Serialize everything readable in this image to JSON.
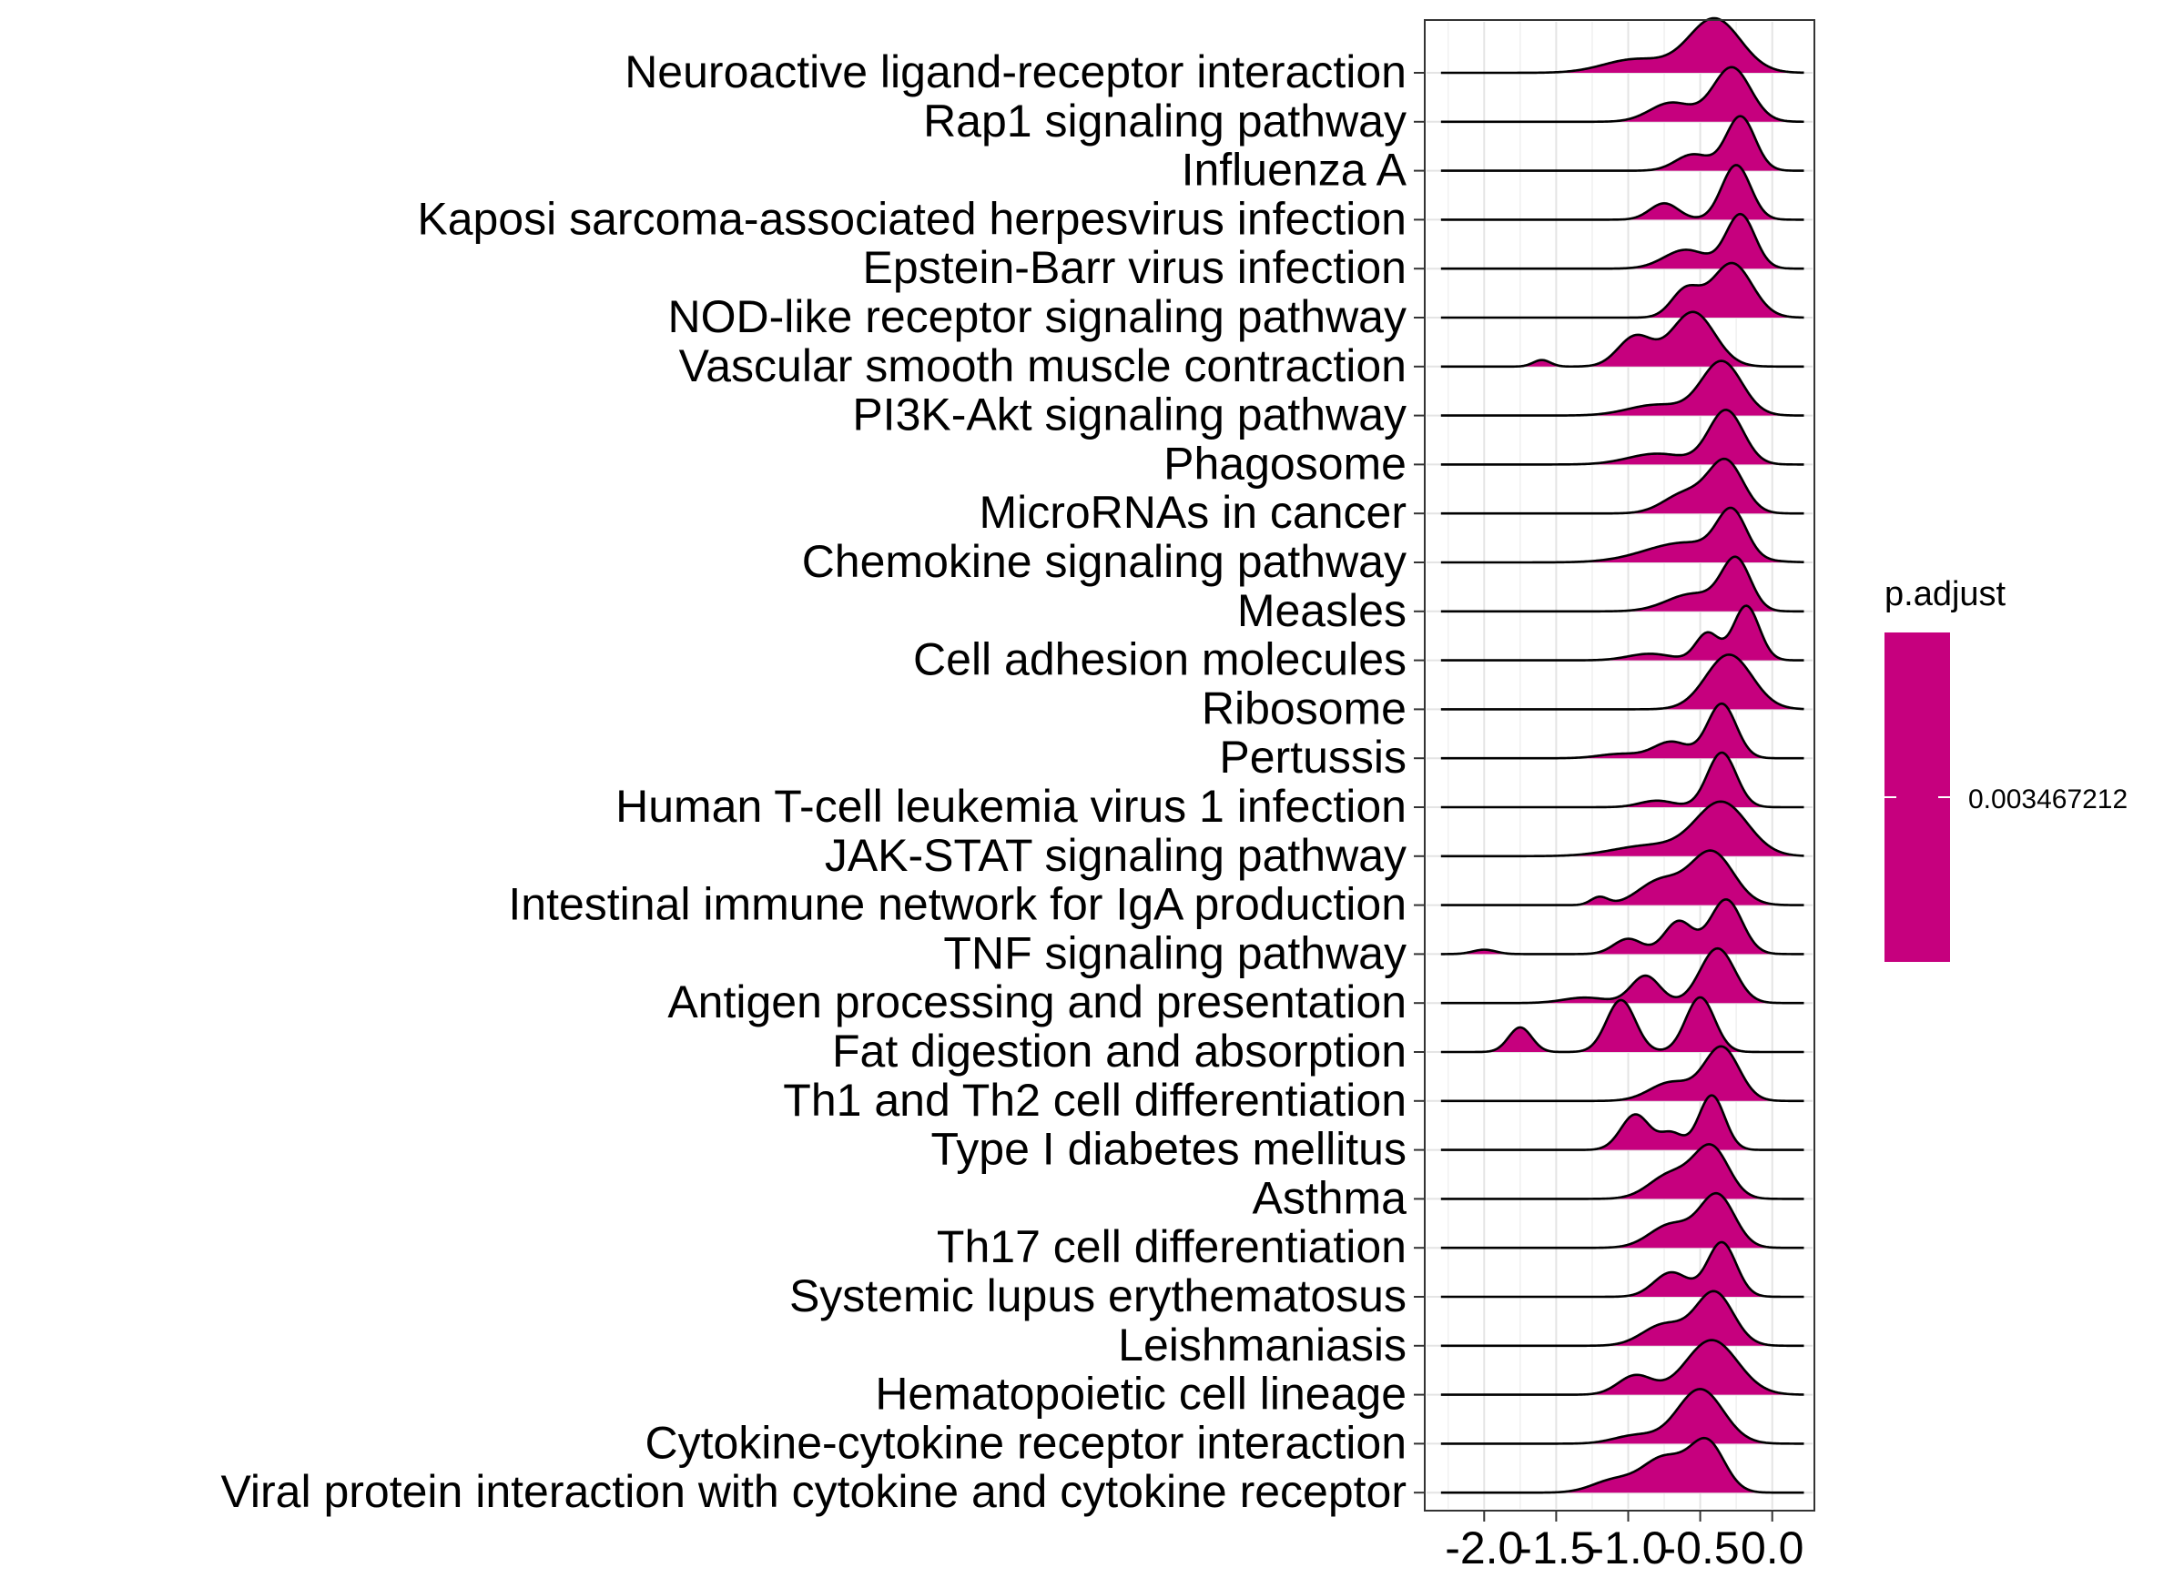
{
  "chart_data": {
    "type": "ridgeline",
    "xlim": [
      -2.4,
      0.28
    ],
    "x_ticks": [
      -2.0,
      -1.5,
      -1.0,
      -0.5,
      0.0
    ],
    "x_tick_labels": [
      "-2.0",
      "-1.5",
      "-1.0",
      "-0.5",
      "0.0"
    ],
    "xlabel": "",
    "ylabel": "",
    "grid": true,
    "legend": {
      "title": "p.adjust",
      "position": "right",
      "value_label": "0.003467212",
      "color": "#C6007E"
    },
    "fill_color": "#C6007E",
    "line_color": "#000000",
    "series": [
      {
        "name": "Neuroactive ligand-receptor interaction",
        "peaks": [
          [
            -0.4,
            0.18,
            1.0
          ],
          [
            -0.95,
            0.22,
            0.25
          ]
        ]
      },
      {
        "name": "Rap1 signaling pathway",
        "peaks": [
          [
            -0.28,
            0.13,
            1.0
          ],
          [
            -0.7,
            0.15,
            0.35
          ]
        ]
      },
      {
        "name": "Influenza A",
        "peaks": [
          [
            -0.22,
            0.1,
            1.0
          ],
          [
            -0.55,
            0.12,
            0.3
          ]
        ]
      },
      {
        "name": "Kaposi sarcoma-associated herpesvirus infection",
        "peaks": [
          [
            -0.25,
            0.1,
            1.0
          ],
          [
            -0.75,
            0.1,
            0.3
          ]
        ]
      },
      {
        "name": "Epstein-Barr virus infection",
        "peaks": [
          [
            -0.22,
            0.1,
            1.0
          ],
          [
            -0.6,
            0.15,
            0.35
          ]
        ]
      },
      {
        "name": "NOD-like receptor signaling pathway",
        "peaks": [
          [
            -0.28,
            0.14,
            1.0
          ],
          [
            -0.6,
            0.1,
            0.5
          ]
        ]
      },
      {
        "name": "Vascular smooth muscle contraction",
        "peaks": [
          [
            -0.55,
            0.15,
            1.0
          ],
          [
            -0.95,
            0.12,
            0.55
          ],
          [
            -1.6,
            0.06,
            0.12
          ]
        ]
      },
      {
        "name": "PI3K-Akt signaling pathway",
        "peaks": [
          [
            -0.35,
            0.14,
            1.0
          ],
          [
            -0.8,
            0.2,
            0.2
          ]
        ]
      },
      {
        "name": "Phagosome",
        "peaks": [
          [
            -0.32,
            0.12,
            1.0
          ],
          [
            -0.8,
            0.2,
            0.2
          ]
        ]
      },
      {
        "name": "MicroRNAs in cancer",
        "peaks": [
          [
            -0.32,
            0.12,
            1.0
          ],
          [
            -0.6,
            0.15,
            0.4
          ]
        ]
      },
      {
        "name": "Chemokine signaling pathway",
        "peaks": [
          [
            -0.28,
            0.1,
            1.0
          ],
          [
            -0.6,
            0.28,
            0.45
          ]
        ]
      },
      {
        "name": "Measles",
        "peaks": [
          [
            -0.25,
            0.1,
            1.0
          ],
          [
            -0.55,
            0.18,
            0.35
          ]
        ]
      },
      {
        "name": "Cell adhesion molecules",
        "peaks": [
          [
            -0.18,
            0.09,
            1.0
          ],
          [
            -0.45,
            0.08,
            0.5
          ],
          [
            -0.85,
            0.15,
            0.12
          ]
        ]
      },
      {
        "name": "Ribosome",
        "peaks": [
          [
            -0.3,
            0.16,
            1.0
          ]
        ]
      },
      {
        "name": "Pertussis",
        "peaks": [
          [
            -0.35,
            0.1,
            1.0
          ],
          [
            -0.7,
            0.12,
            0.3
          ],
          [
            -1.05,
            0.15,
            0.08
          ]
        ]
      },
      {
        "name": "Human T-cell leukemia virus 1 infection",
        "peaks": [
          [
            -0.35,
            0.1,
            1.0
          ],
          [
            -0.8,
            0.12,
            0.12
          ]
        ]
      },
      {
        "name": "JAK-STAT signaling pathway",
        "peaks": [
          [
            -0.35,
            0.18,
            1.0
          ],
          [
            -0.85,
            0.25,
            0.2
          ]
        ]
      },
      {
        "name": "Intestinal immune network for IgA production",
        "peaks": [
          [
            -0.42,
            0.15,
            1.0
          ],
          [
            -0.78,
            0.15,
            0.45
          ],
          [
            -1.2,
            0.06,
            0.15
          ]
        ]
      },
      {
        "name": "TNF signaling pathway",
        "peaks": [
          [
            -0.32,
            0.11,
            1.0
          ],
          [
            -0.65,
            0.1,
            0.6
          ],
          [
            -1.0,
            0.1,
            0.28
          ],
          [
            -2.0,
            0.08,
            0.08
          ]
        ]
      },
      {
        "name": "Antigen processing and presentation",
        "peaks": [
          [
            -0.38,
            0.12,
            1.0
          ],
          [
            -0.88,
            0.1,
            0.5
          ],
          [
            -1.3,
            0.15,
            0.1
          ]
        ]
      },
      {
        "name": "Fat digestion and absorption",
        "peaks": [
          [
            -0.5,
            0.1,
            1.0
          ],
          [
            -1.05,
            0.1,
            0.95
          ],
          [
            -1.75,
            0.08,
            0.45
          ]
        ]
      },
      {
        "name": "Th1 and Th2 cell differentiation",
        "peaks": [
          [
            -0.35,
            0.12,
            1.0
          ],
          [
            -0.7,
            0.15,
            0.35
          ]
        ]
      },
      {
        "name": "Type I diabetes mellitus",
        "peaks": [
          [
            -0.42,
            0.09,
            1.0
          ],
          [
            -0.95,
            0.1,
            0.65
          ],
          [
            -0.7,
            0.08,
            0.3
          ]
        ]
      },
      {
        "name": "Asthma",
        "peaks": [
          [
            -0.42,
            0.12,
            1.0
          ],
          [
            -0.7,
            0.15,
            0.5
          ]
        ]
      },
      {
        "name": "Th17 cell differentiation",
        "peaks": [
          [
            -0.38,
            0.12,
            1.0
          ],
          [
            -0.7,
            0.15,
            0.45
          ]
        ]
      },
      {
        "name": "Systemic lupus erythematosus",
        "peaks": [
          [
            -0.35,
            0.1,
            1.0
          ],
          [
            -0.7,
            0.12,
            0.45
          ]
        ]
      },
      {
        "name": "Leishmaniasis",
        "peaks": [
          [
            -0.4,
            0.13,
            1.0
          ],
          [
            -0.75,
            0.15,
            0.4
          ]
        ]
      },
      {
        "name": "Hematopoietic cell lineage",
        "peaks": [
          [
            -0.42,
            0.18,
            1.0
          ],
          [
            -0.95,
            0.12,
            0.35
          ]
        ]
      },
      {
        "name": "Cytokine-cytokine receptor interaction",
        "peaks": [
          [
            -0.5,
            0.16,
            1.0
          ],
          [
            -0.95,
            0.15,
            0.15
          ]
        ]
      },
      {
        "name": "Viral protein interaction with cytokine and cytokine receptor",
        "peaks": [
          [
            -0.45,
            0.12,
            1.0
          ],
          [
            -0.75,
            0.15,
            0.7
          ],
          [
            -1.1,
            0.15,
            0.25
          ]
        ]
      }
    ]
  }
}
